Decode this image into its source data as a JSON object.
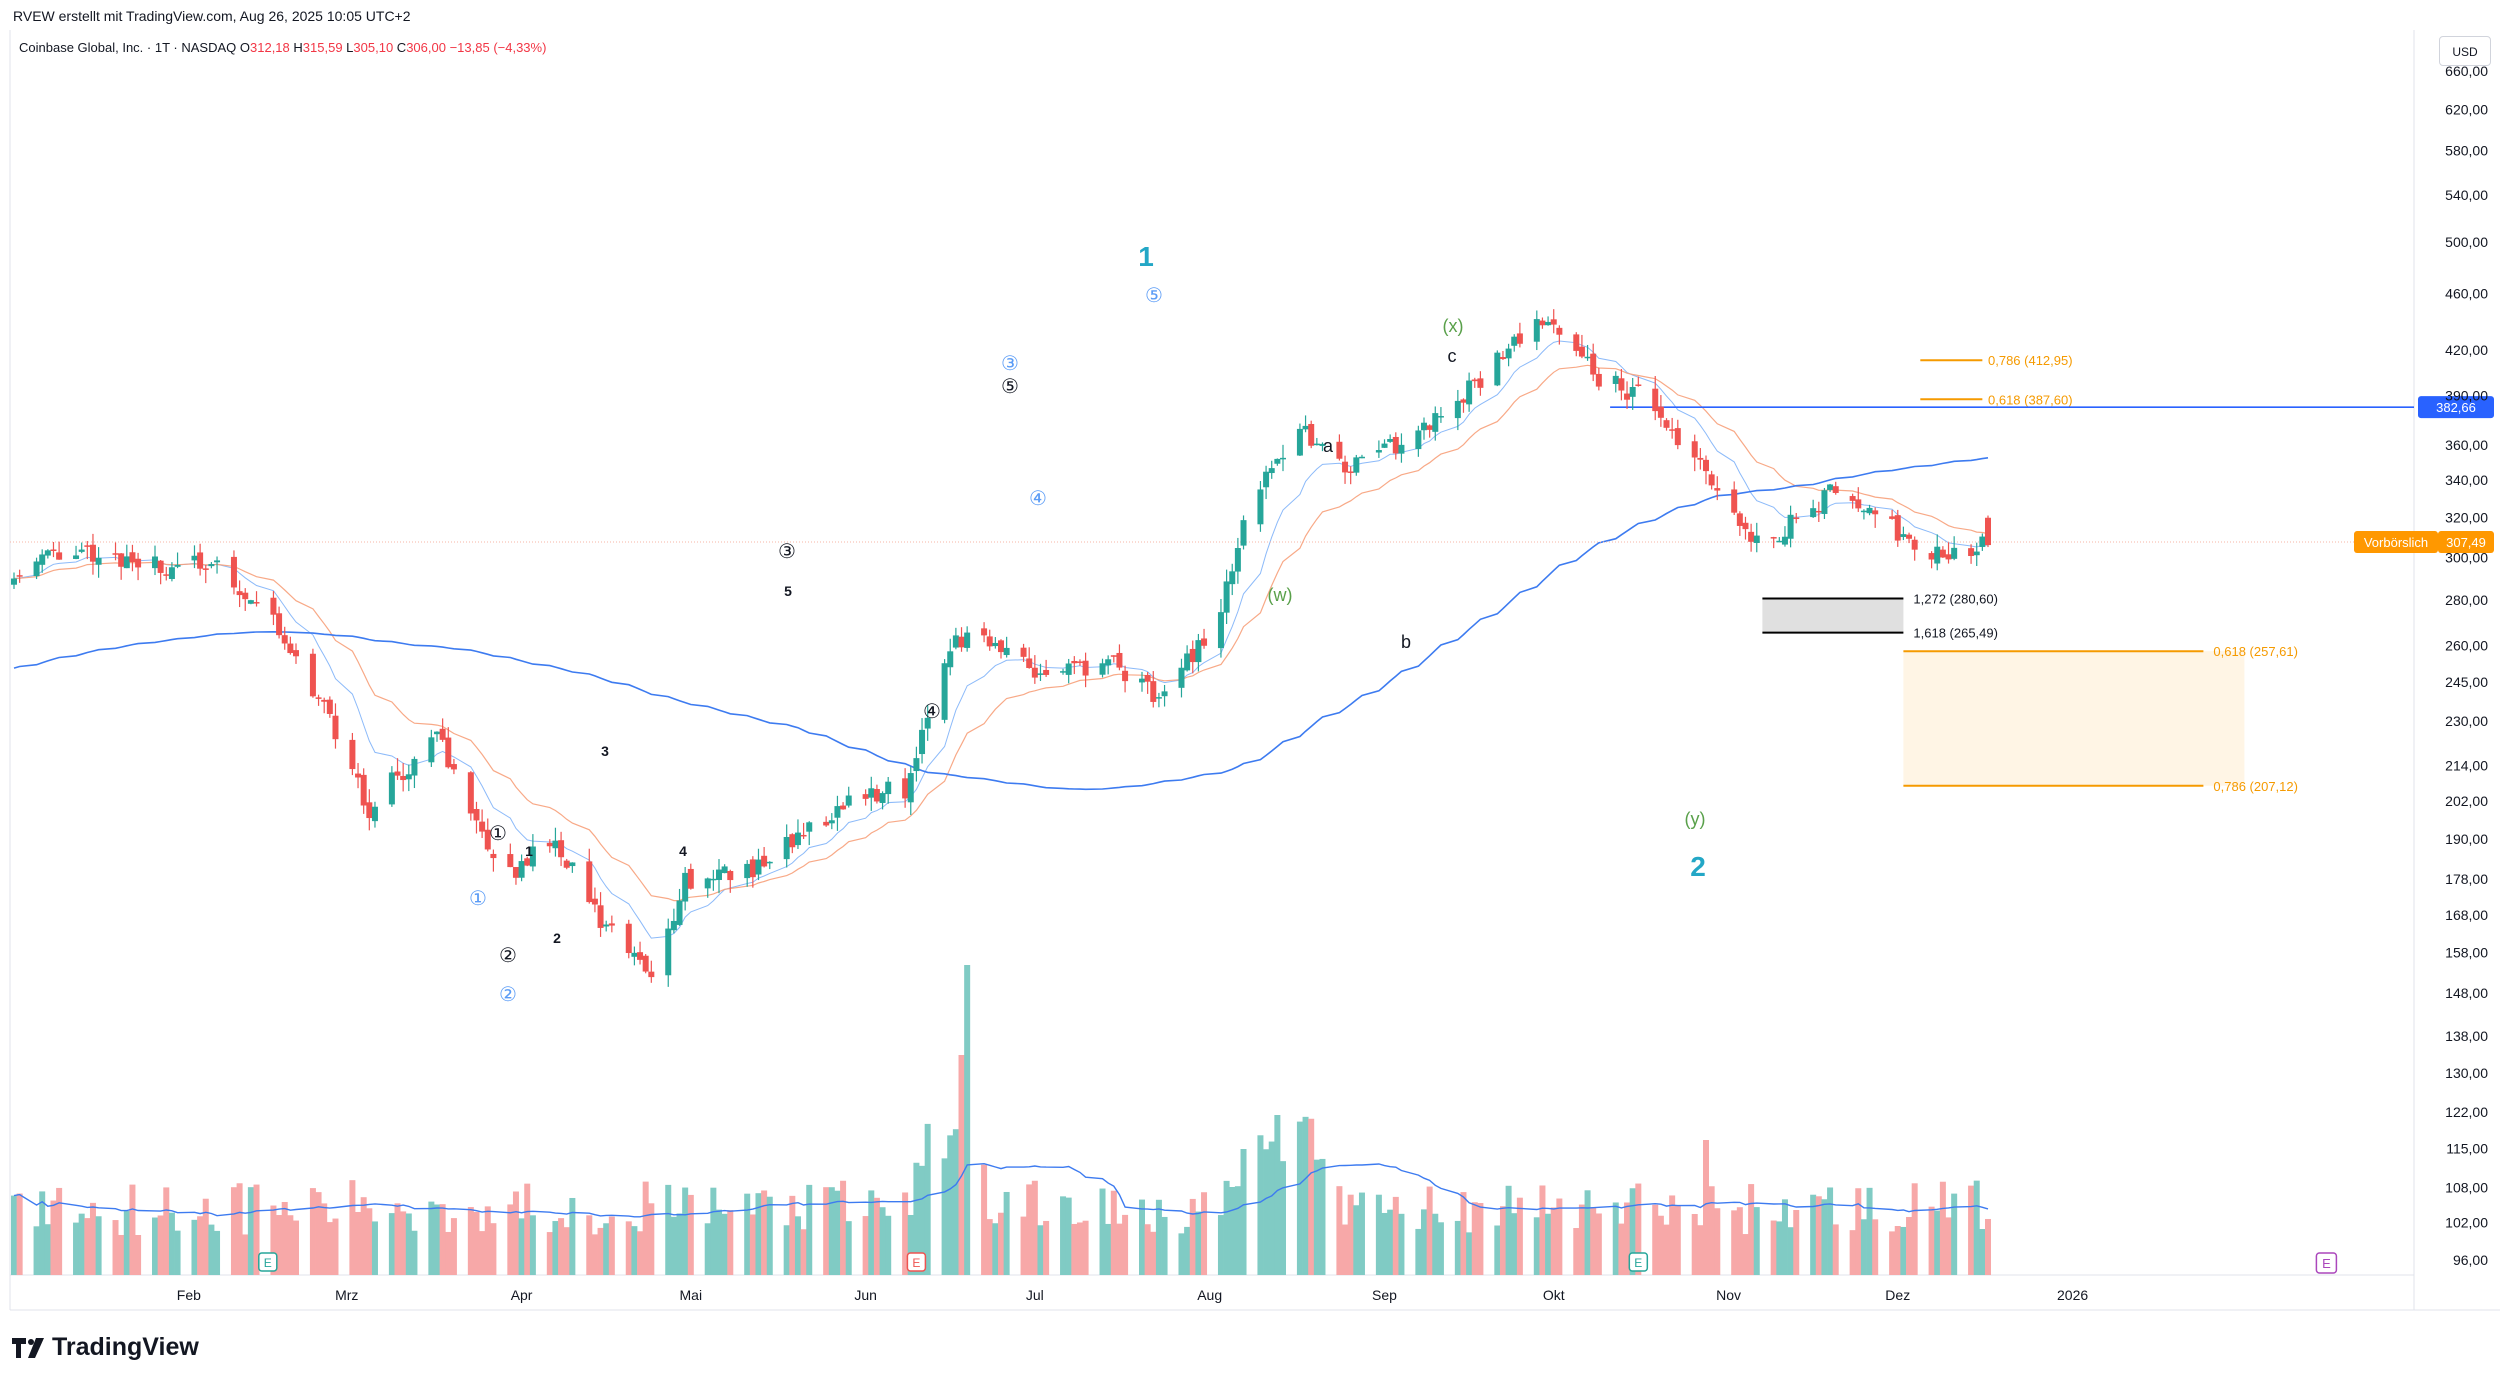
{
  "header": {
    "attribution": "RVEW erstellt mit TradingView.com, Aug 26, 2025 10:05 UTC+2",
    "symbol": "Coinbase Global, Inc. · 1T · NASDAQ",
    "ohlc": {
      "o_label": "O",
      "o": "312,18",
      "h_label": "H",
      "h": "315,59",
      "l_label": "L",
      "l": "305,10",
      "c_label": "C",
      "c": "306,00",
      "change": "−13,85 (−4,33%)"
    }
  },
  "axis": {
    "currency": "USD",
    "price_ticks": [
      "660,00",
      "620,00",
      "580,00",
      "540,00",
      "500,00",
      "460,00",
      "420,00",
      "390,00",
      "360,00",
      "340,00",
      "320,00",
      "300,00",
      "280,00",
      "260,00",
      "245,00",
      "230,00",
      "214,00",
      "202,00",
      "190,00",
      "178,00",
      "168,00",
      "158,00",
      "148,00",
      "138,00",
      "130,00",
      "122,00",
      "115,00",
      "108,00",
      "102,00",
      "96,00"
    ],
    "time_ticks": [
      "Feb",
      "Mrz",
      "Apr",
      "Mai",
      "Jun",
      "Jul",
      "Aug",
      "Sep",
      "Okt",
      "Nov",
      "Dez",
      "2026"
    ],
    "last_price": "307,49",
    "last_price_label": "Vorbörslich",
    "level_price": "382,66"
  },
  "annotations": {
    "wave_major": [
      "1",
      "2"
    ],
    "wave_minor": [
      "1",
      "2",
      "3",
      "4",
      "5"
    ],
    "circled_black": [
      "①",
      "②",
      "③",
      "④",
      "⑤"
    ],
    "circled_blue": [
      "①",
      "②",
      "③",
      "④",
      "⑤"
    ],
    "corrective": [
      "(w)",
      "(x)",
      "(y)",
      "a",
      "b",
      "c"
    ],
    "earnings_marker": "E",
    "fib_labels": [
      "0,786 (412,95)",
      "0,618 (387,60)",
      "1,272 (280,60)",
      "1,618 (265,49)",
      "0,618 (257,61)",
      "0,786 (207,12)"
    ]
  },
  "colors": {
    "up": "#26a69a",
    "down": "#ef5350",
    "vol_up": "#80cbc4",
    "vol_down": "#f7a8a8",
    "ema_fast": "#5b9cf6",
    "ema_slow": "#f7a07a",
    "ma_long": "#3d7bf0",
    "fib": "#f59a00",
    "wave_major": "#23a7c6",
    "corrective": "#59a04a",
    "level": "#2962ff",
    "premarket": "#ff9800"
  },
  "brand": {
    "name": "TradingView",
    "logo_icon": "tradingview-logo-icon"
  },
  "chart_data": {
    "type": "candlestick",
    "title": "Coinbase Global, Inc. · 1T · NASDAQ",
    "scale": "log",
    "ylim": [
      96,
      670
    ],
    "x_start": "Jan 2025",
    "x_end": "Jan 2026",
    "grid": false,
    "key_levels": {
      "horizontal_level": 382.66,
      "premarket_last": 307.49
    },
    "fib_levels": [
      {
        "label": "0,786 (412,95)",
        "value": 412.95
      },
      {
        "label": "0,618 (387,60)",
        "value": 387.6
      },
      {
        "label": "1,272 (280,60)",
        "value": 280.6
      },
      {
        "label": "1,618 (265,49)",
        "value": 265.49
      },
      {
        "label": "0,618 (257,61)",
        "value": 257.61
      },
      {
        "label": "0,786 (207,12)",
        "value": 207.12
      }
    ],
    "key_prices": {
      "wave_1_high": 445,
      "april_low": 143,
      "last_close": 306.0
    }
  }
}
